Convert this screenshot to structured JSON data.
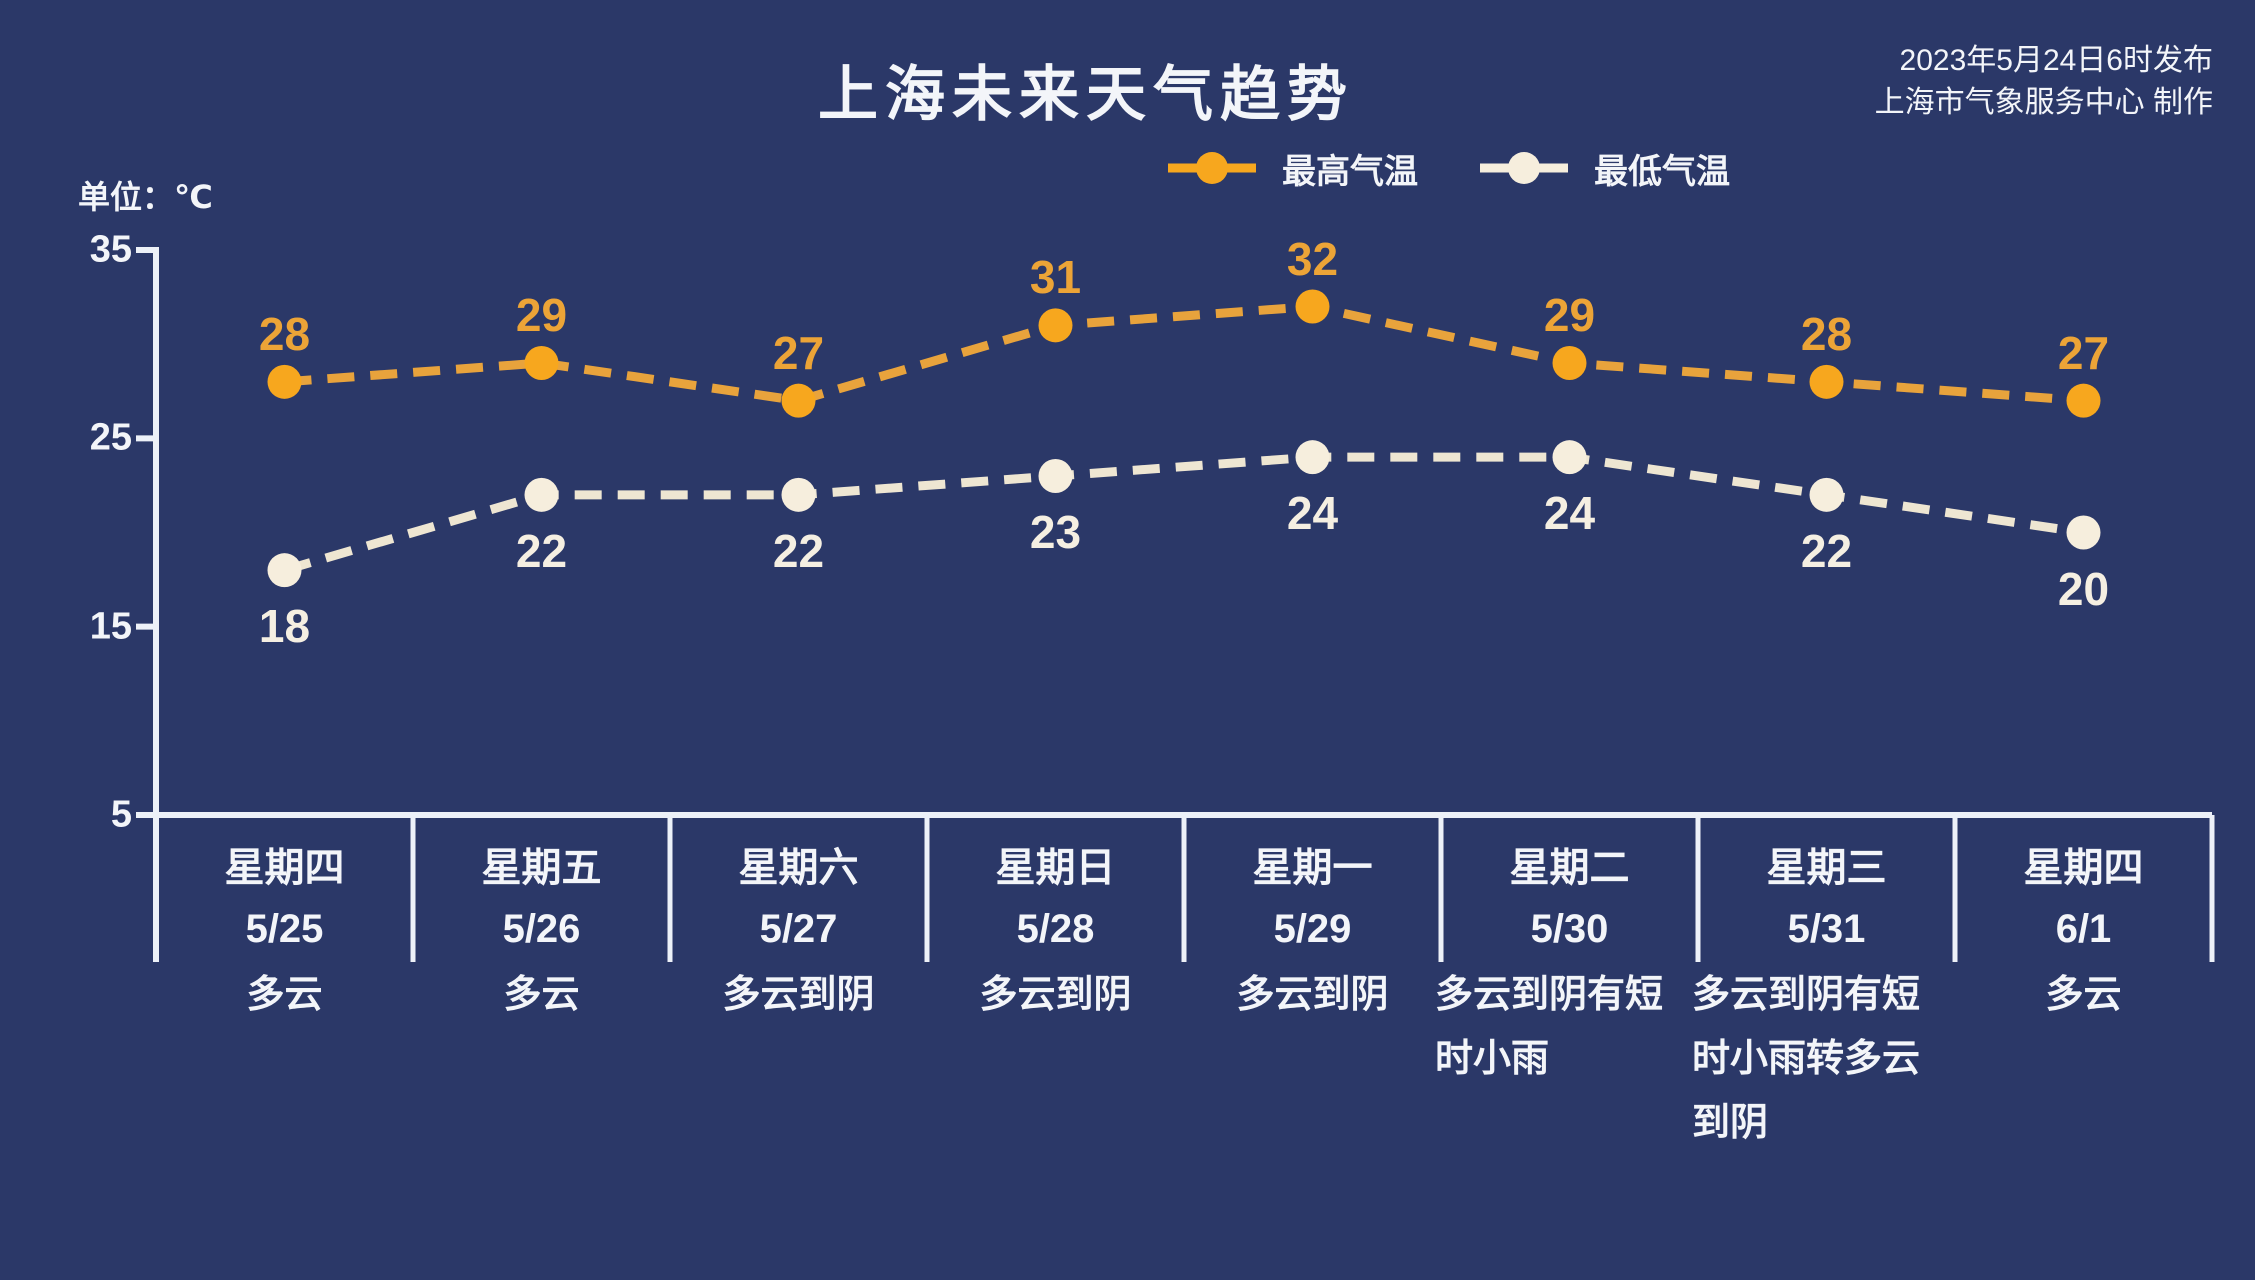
{
  "title": "上海未来天气趋势",
  "publish": {
    "line1": "2023年5月24日6时发布",
    "line2": "上海市气象服务中心 制作"
  },
  "unit_label": "单位：℃",
  "legend": [
    {
      "label": "最高气温",
      "color": "#f7a71e"
    },
    {
      "label": "最低气温",
      "color": "#f6eedd"
    }
  ],
  "colors": {
    "background": "#2b3868",
    "axis": "#edf1f8",
    "text": "#f3f5f9",
    "high_line": "#e8a33c",
    "high_marker": "#f7a71e",
    "high_label": "#eca437",
    "low_line": "#eee6d2",
    "low_marker": "#f6eedd",
    "low_label": "#f5efe2"
  },
  "chart_data": {
    "type": "line",
    "title": "上海未来天气趋势",
    "unit": "℃",
    "ylim": [
      5,
      35
    ],
    "yticks": [
      35,
      25,
      15,
      5
    ],
    "grid": false,
    "legend_position": "top",
    "line_style": "dashed",
    "categories": [
      {
        "weekday": "星期四",
        "date": "5/25",
        "weather": "多云",
        "weather_lines": [
          "多云"
        ]
      },
      {
        "weekday": "星期五",
        "date": "5/26",
        "weather": "多云",
        "weather_lines": [
          "多云"
        ]
      },
      {
        "weekday": "星期六",
        "date": "5/27",
        "weather": "多云到阴",
        "weather_lines": [
          "多云到阴"
        ]
      },
      {
        "weekday": "星期日",
        "date": "5/28",
        "weather": "多云到阴",
        "weather_lines": [
          "多云到阴"
        ]
      },
      {
        "weekday": "星期一",
        "date": "5/29",
        "weather": "多云到阴",
        "weather_lines": [
          "多云到阴"
        ]
      },
      {
        "weekday": "星期二",
        "date": "5/30",
        "weather": "多云到阴有短时小雨",
        "weather_lines": [
          "多云到阴有短",
          "时小雨"
        ]
      },
      {
        "weekday": "星期三",
        "date": "5/31",
        "weather": "多云到阴有短时小雨转多云到阴",
        "weather_lines": [
          "多云到阴有短",
          "时小雨转多云",
          "到阴"
        ]
      },
      {
        "weekday": "星期四",
        "date": "6/1",
        "weather": "多云",
        "weather_lines": [
          "多云"
        ]
      }
    ],
    "series": [
      {
        "name": "最高气温",
        "values": [
          28,
          29,
          27,
          31,
          32,
          29,
          28,
          27
        ],
        "label_position": "above"
      },
      {
        "name": "最低气温",
        "values": [
          18,
          22,
          22,
          23,
          24,
          24,
          22,
          20
        ],
        "label_position": "below"
      }
    ]
  }
}
